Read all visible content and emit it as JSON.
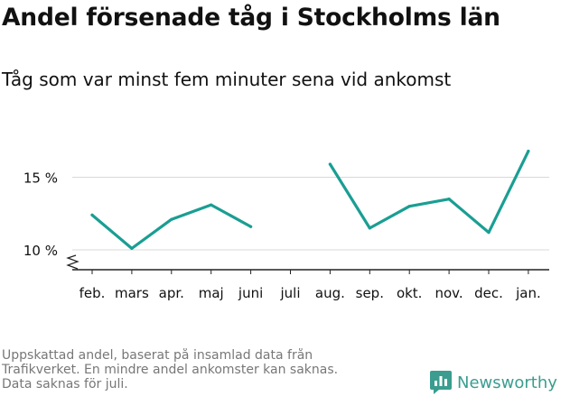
{
  "title": "Andel försenade tåg i Stockholms län",
  "subtitle": "Tåg som var minst fem minuter sena vid ankomst",
  "note_lines": [
    "Uppskattad andel, baserat på insamlad data från",
    "Trafikverket. En mindre andel ankomster kan saknas.",
    "Data saknas för juli."
  ],
  "brand": {
    "name": "Newsworthy",
    "icon": "newsworthy-bar-chart-icon",
    "color": "#3a9d8f"
  },
  "chart_data": {
    "type": "line",
    "categories": [
      "feb.",
      "mars",
      "apr.",
      "maj",
      "juni",
      "juli",
      "aug.",
      "sep.",
      "okt.",
      "nov.",
      "dec.",
      "jan."
    ],
    "series": [
      {
        "values": [
          12.4,
          10.1,
          12.1,
          13.1,
          11.6,
          null,
          15.9,
          11.5,
          13.0,
          13.5,
          11.2,
          16.8
        ]
      }
    ],
    "yticks": [
      10,
      15
    ],
    "ytick_labels": [
      "10 %",
      "15 %"
    ],
    "ylim": [
      9.0,
      17.4
    ],
    "y_axis_break": true,
    "grid": true,
    "line_color": "#1a9e93",
    "xlabel": "",
    "ylabel": ""
  }
}
